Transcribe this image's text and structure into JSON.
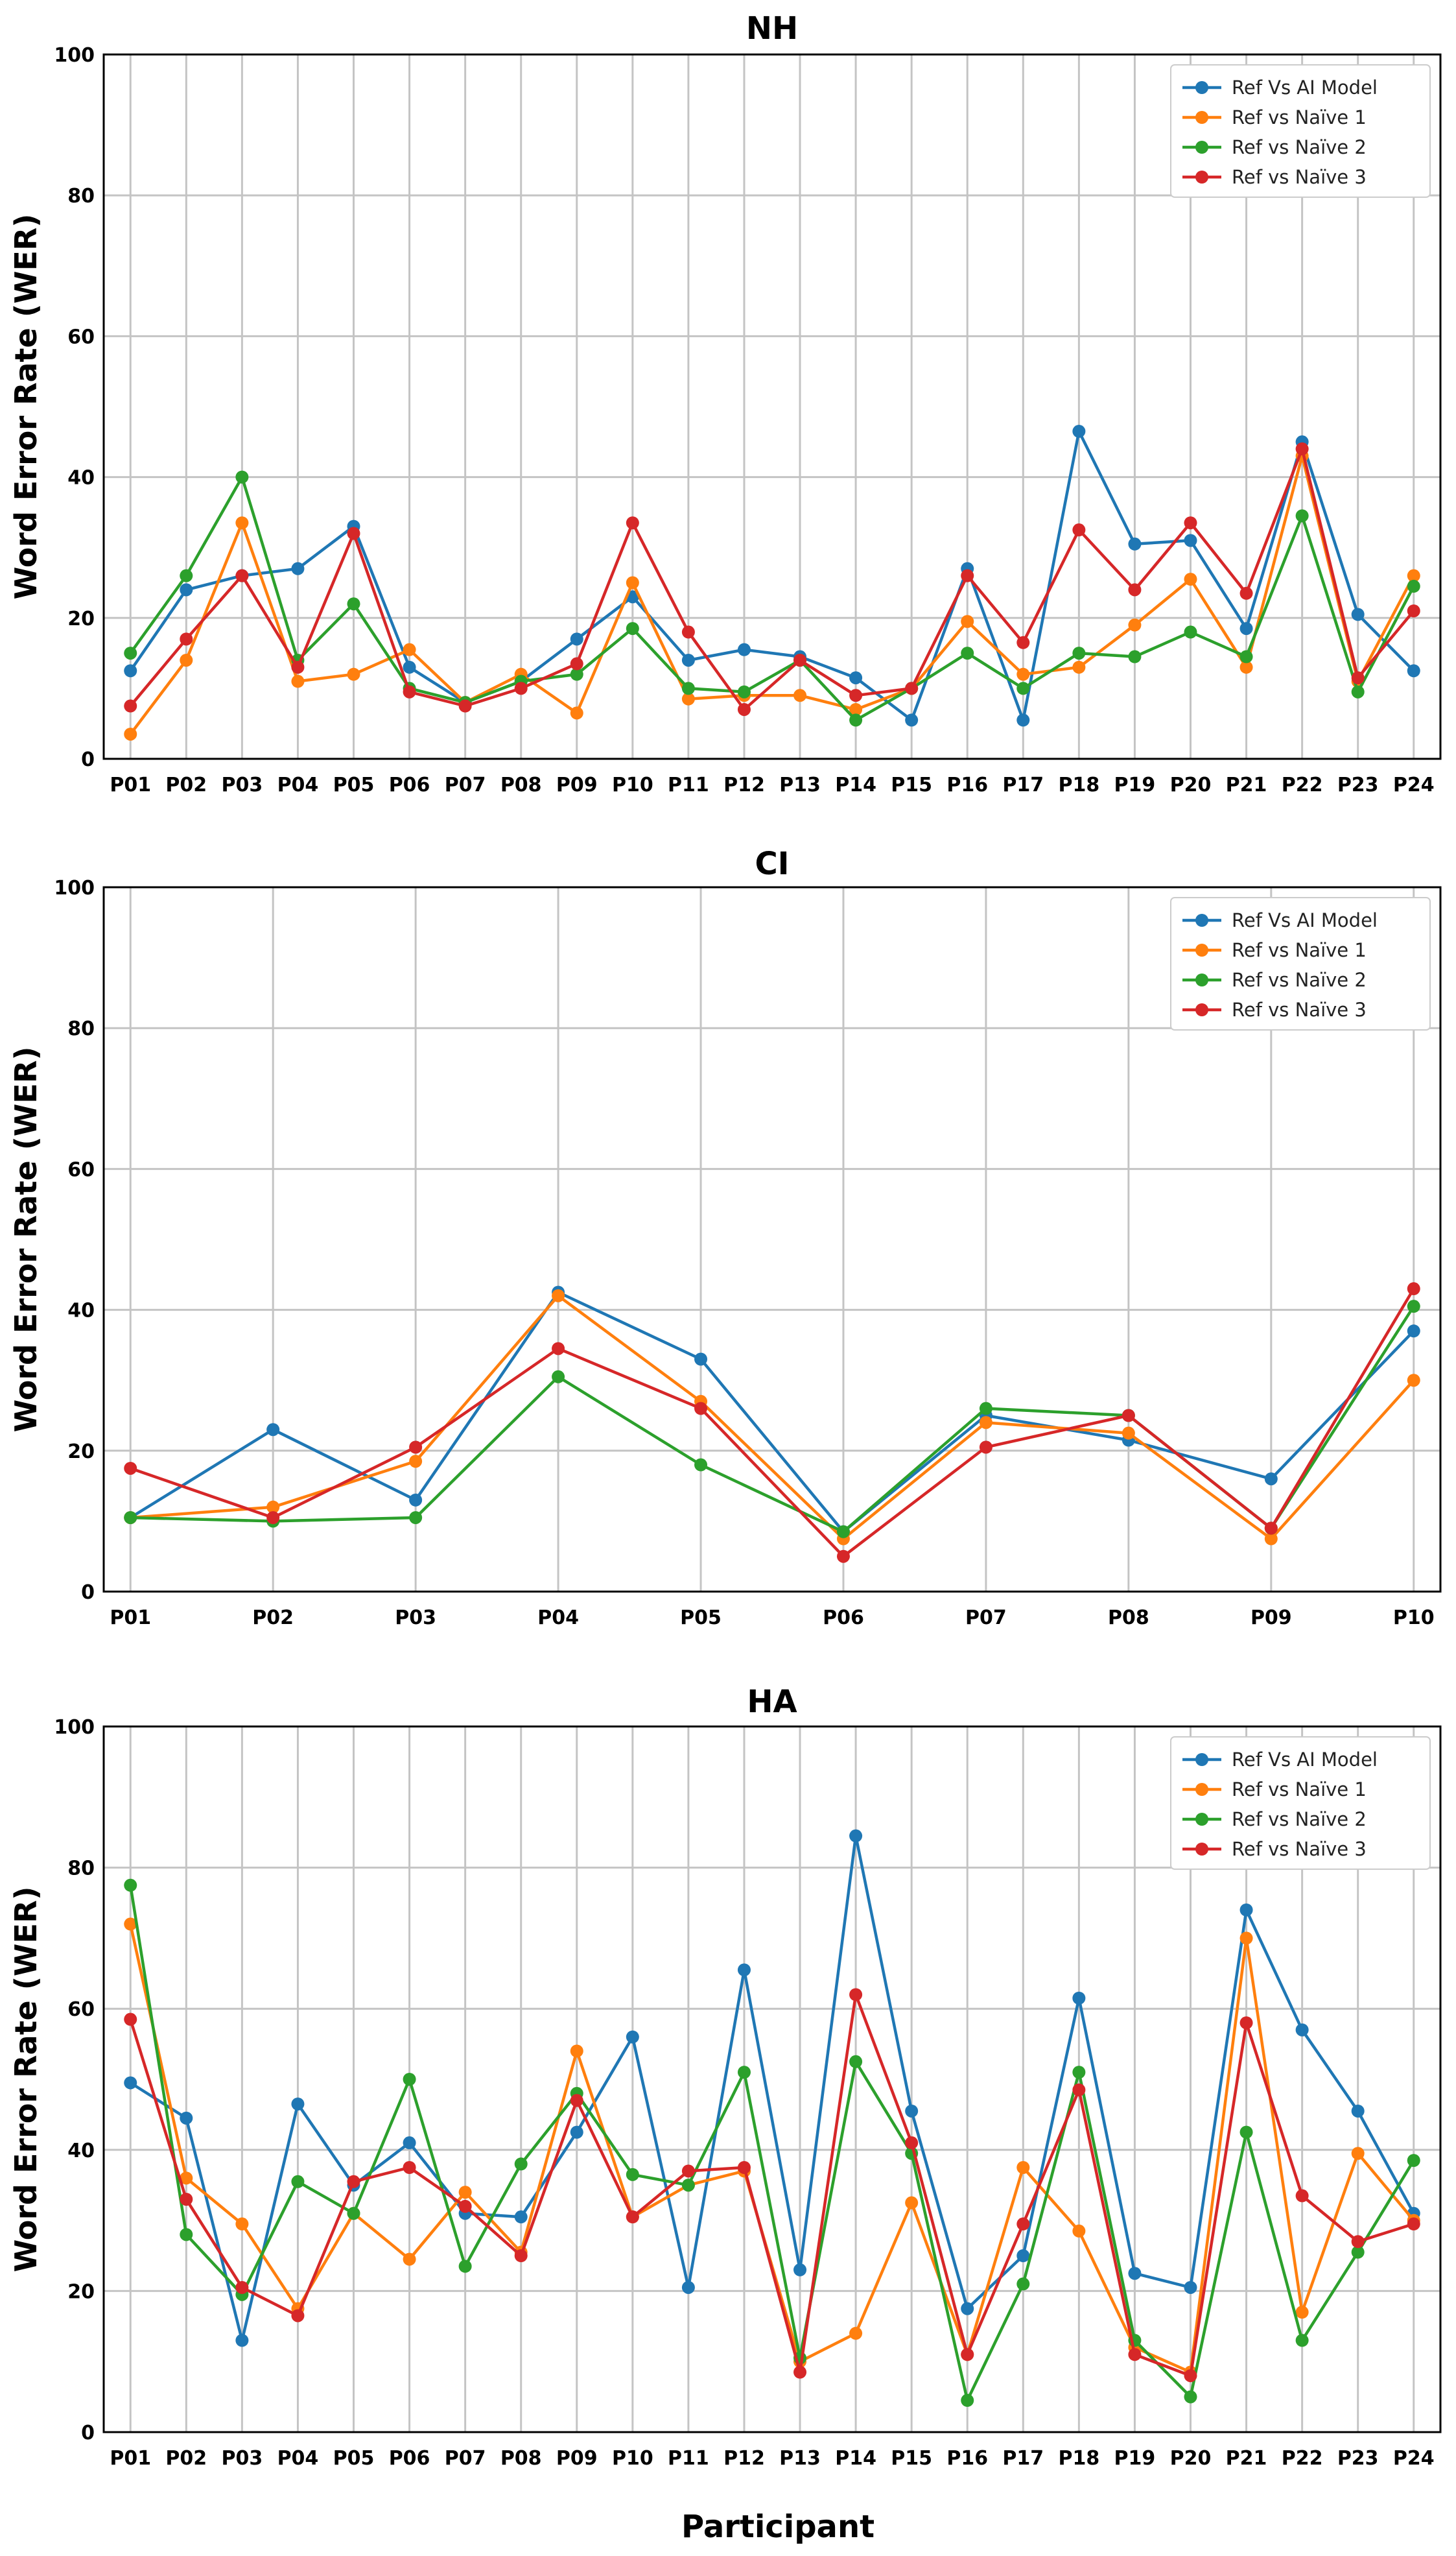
{
  "figure": {
    "xlabel": "Participant"
  },
  "chart_data": [
    {
      "type": "line",
      "title": "NH",
      "xlabel": "",
      "ylabel": "Word Error Rate (WER)",
      "ylim": [
        0,
        100
      ],
      "yticks": [
        0,
        20,
        40,
        60,
        80,
        100
      ],
      "grid": true,
      "legend": "top-right",
      "categories": [
        "P01",
        "P02",
        "P03",
        "P04",
        "P05",
        "P06",
        "P07",
        "P08",
        "P09",
        "P10",
        "P11",
        "P12",
        "P13",
        "P14",
        "P15",
        "P16",
        "P17",
        "P18",
        "P19",
        "P20",
        "P21",
        "P22",
        "P23",
        "P24"
      ],
      "series": [
        {
          "name": "Ref Vs AI Model",
          "color": "#1f77b4",
          "values": [
            12.5,
            24,
            26,
            27,
            33,
            13,
            8,
            11,
            17,
            23,
            14,
            15.5,
            14.5,
            11.5,
            5.5,
            27,
            5.5,
            46.5,
            30.5,
            31,
            18.5,
            45,
            20.5,
            12.5
          ]
        },
        {
          "name": "Ref vs Naïve 1",
          "color": "#ff7f0e",
          "values": [
            3.5,
            14,
            33.5,
            11,
            12,
            15.5,
            8,
            12,
            6.5,
            25,
            8.5,
            9,
            9,
            7,
            10,
            19.5,
            12,
            13,
            19,
            25.5,
            13,
            43,
            11,
            26
          ]
        },
        {
          "name": "Ref vs Naïve 2",
          "color": "#2ca02c",
          "values": [
            15,
            26,
            40,
            14,
            22,
            10,
            8,
            11,
            12,
            18.5,
            10,
            9.5,
            14,
            5.5,
            10,
            15,
            10,
            15,
            14.5,
            18,
            14.5,
            34.5,
            9.5,
            24.5
          ]
        },
        {
          "name": "Ref vs Naïve 3",
          "color": "#d62728",
          "values": [
            7.5,
            17,
            26,
            13,
            32,
            9.5,
            7.5,
            10,
            13.5,
            33.5,
            18,
            7,
            14,
            9,
            10,
            26,
            16.5,
            32.5,
            24,
            33.5,
            23.5,
            44,
            11.5,
            21
          ]
        }
      ]
    },
    {
      "type": "line",
      "title": "CI",
      "xlabel": "",
      "ylabel": "Word Error Rate (WER)",
      "ylim": [
        0,
        100
      ],
      "yticks": [
        0,
        20,
        40,
        60,
        80,
        100
      ],
      "grid": true,
      "legend": "top-right",
      "categories": [
        "P01",
        "P02",
        "P03",
        "P04",
        "P05",
        "P06",
        "P07",
        "P08",
        "P09",
        "P10"
      ],
      "series": [
        {
          "name": "Ref Vs AI Model",
          "color": "#1f77b4",
          "values": [
            10.5,
            23,
            13,
            42.5,
            33,
            8.5,
            25,
            21.5,
            16,
            37
          ]
        },
        {
          "name": "Ref vs Naïve 1",
          "color": "#ff7f0e",
          "values": [
            10.5,
            12,
            18.5,
            42,
            27,
            7.5,
            24,
            22.5,
            7.5,
            30
          ]
        },
        {
          "name": "Ref vs Naïve 2",
          "color": "#2ca02c",
          "values": [
            10.5,
            10,
            10.5,
            30.5,
            18,
            8.5,
            26,
            25,
            9,
            40.5
          ]
        },
        {
          "name": "Ref vs Naïve 3",
          "color": "#d62728",
          "values": [
            17.5,
            10.5,
            20.5,
            34.5,
            26,
            5,
            20.5,
            25,
            9,
            43
          ]
        }
      ]
    },
    {
      "type": "line",
      "title": "HA",
      "xlabel": "",
      "ylabel": "Word Error Rate (WER)",
      "ylim": [
        0,
        100
      ],
      "yticks": [
        0,
        20,
        40,
        60,
        80,
        100
      ],
      "grid": true,
      "legend": "top-right",
      "categories": [
        "P01",
        "P02",
        "P03",
        "P04",
        "P05",
        "P06",
        "P07",
        "P08",
        "P09",
        "P10",
        "P11",
        "P12",
        "P13",
        "P14",
        "P15",
        "P16",
        "P17",
        "P18",
        "P19",
        "P20",
        "P21",
        "P22",
        "P23",
        "P24"
      ],
      "series": [
        {
          "name": "Ref Vs AI Model",
          "color": "#1f77b4",
          "values": [
            49.5,
            44.5,
            13,
            46.5,
            35,
            41,
            31,
            30.5,
            42.5,
            56,
            20.5,
            65.5,
            23,
            84.5,
            45.5,
            17.5,
            25,
            61.5,
            22.5,
            20.5,
            74,
            57,
            45.5,
            31
          ]
        },
        {
          "name": "Ref vs Naïve 1",
          "color": "#ff7f0e",
          "values": [
            72,
            36,
            29.5,
            17.5,
            31,
            24.5,
            34,
            25.5,
            54,
            30.5,
            35,
            37,
            10,
            14,
            32.5,
            11,
            37.5,
            28.5,
            12,
            8.5,
            70,
            17,
            39.5,
            30
          ]
        },
        {
          "name": "Ref vs Naïve 2",
          "color": "#2ca02c",
          "values": [
            77.5,
            28,
            19.5,
            35.5,
            31,
            50,
            23.5,
            38,
            48,
            36.5,
            35,
            51,
            10.5,
            52.5,
            39.5,
            4.5,
            21,
            51,
            13,
            5,
            42.5,
            13,
            25.5,
            38.5
          ]
        },
        {
          "name": "Ref vs Naïve 3",
          "color": "#d62728",
          "values": [
            58.5,
            33,
            20.5,
            16.5,
            35.5,
            37.5,
            32,
            25,
            47,
            30.5,
            37,
            37.5,
            8.5,
            62,
            41,
            11,
            29.5,
            48.5,
            11,
            8,
            58,
            33.5,
            27,
            29.5
          ]
        }
      ]
    }
  ]
}
